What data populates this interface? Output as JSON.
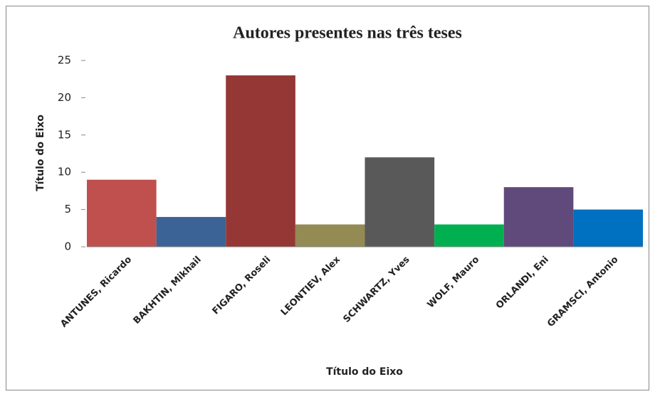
{
  "chart_data": {
    "type": "bar",
    "title": "Autores presentes nas três teses",
    "x_label": "Título do Eixo",
    "y_label": "Título do Eixo",
    "categories": [
      "ANTUNES, Ricardo",
      "BAKHTIN, Mikhail",
      "FIGARO, Roseli",
      "LEONTIEV, Alex",
      "SCHWARTZ, Yves",
      "WOLF, Mauro",
      "ORLANDI, Eni",
      "GRAMSCI, Antonio"
    ],
    "values": [
      9,
      4,
      23,
      3,
      12,
      3,
      8,
      5
    ],
    "colors": [
      "#c0504d",
      "#3c6396",
      "#953735",
      "#948a54",
      "#595959",
      "#00b050",
      "#604a7b",
      "#0070c0"
    ],
    "ylim": [
      0,
      25
    ],
    "yticks": [
      0,
      5,
      10,
      15,
      20,
      25
    ],
    "grid": false
  }
}
